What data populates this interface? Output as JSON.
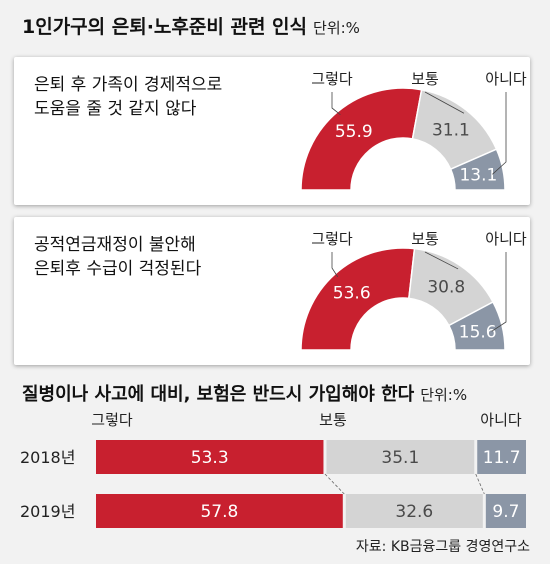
{
  "top_title": "1인가구의 은퇴·노후준비 관련 인식",
  "top_unit": "단위:%",
  "bottom_title": "질병이나 사고에 대비, 보험은 반드시 가입해야 한다",
  "bottom_unit": "단위:%",
  "source": "자료: KB금융그룹 경영연구소",
  "colors": {
    "agree": "#c8202f",
    "neutral": "#d4d4d4",
    "disagree": "#8b96a6",
    "background": "#f2f2f2"
  },
  "chart_data": [
    {
      "type": "pie",
      "subtype": "half-donut",
      "question_lines": [
        "은퇴 후 가족이 경제적으로",
        "도움을 줄 것 같지 않다"
      ],
      "categories": [
        "그렇다",
        "보통",
        "아니다"
      ],
      "values": [
        55.9,
        31.1,
        13.1
      ]
    },
    {
      "type": "pie",
      "subtype": "half-donut",
      "question_lines": [
        "공적연금재정이 불안해",
        "은퇴후 수급이 걱정된다"
      ],
      "categories": [
        "그렇다",
        "보통",
        "아니다"
      ],
      "values": [
        53.6,
        30.8,
        15.6
      ]
    },
    {
      "type": "bar",
      "subtype": "stacked-horizontal-100",
      "categories": [
        "2018년",
        "2019년"
      ],
      "series": [
        {
          "name": "그렇다",
          "values": [
            53.3,
            57.8
          ]
        },
        {
          "name": "보통",
          "values": [
            35.1,
            32.6
          ]
        },
        {
          "name": "아니다",
          "values": [
            11.7,
            9.7
          ]
        }
      ]
    }
  ]
}
